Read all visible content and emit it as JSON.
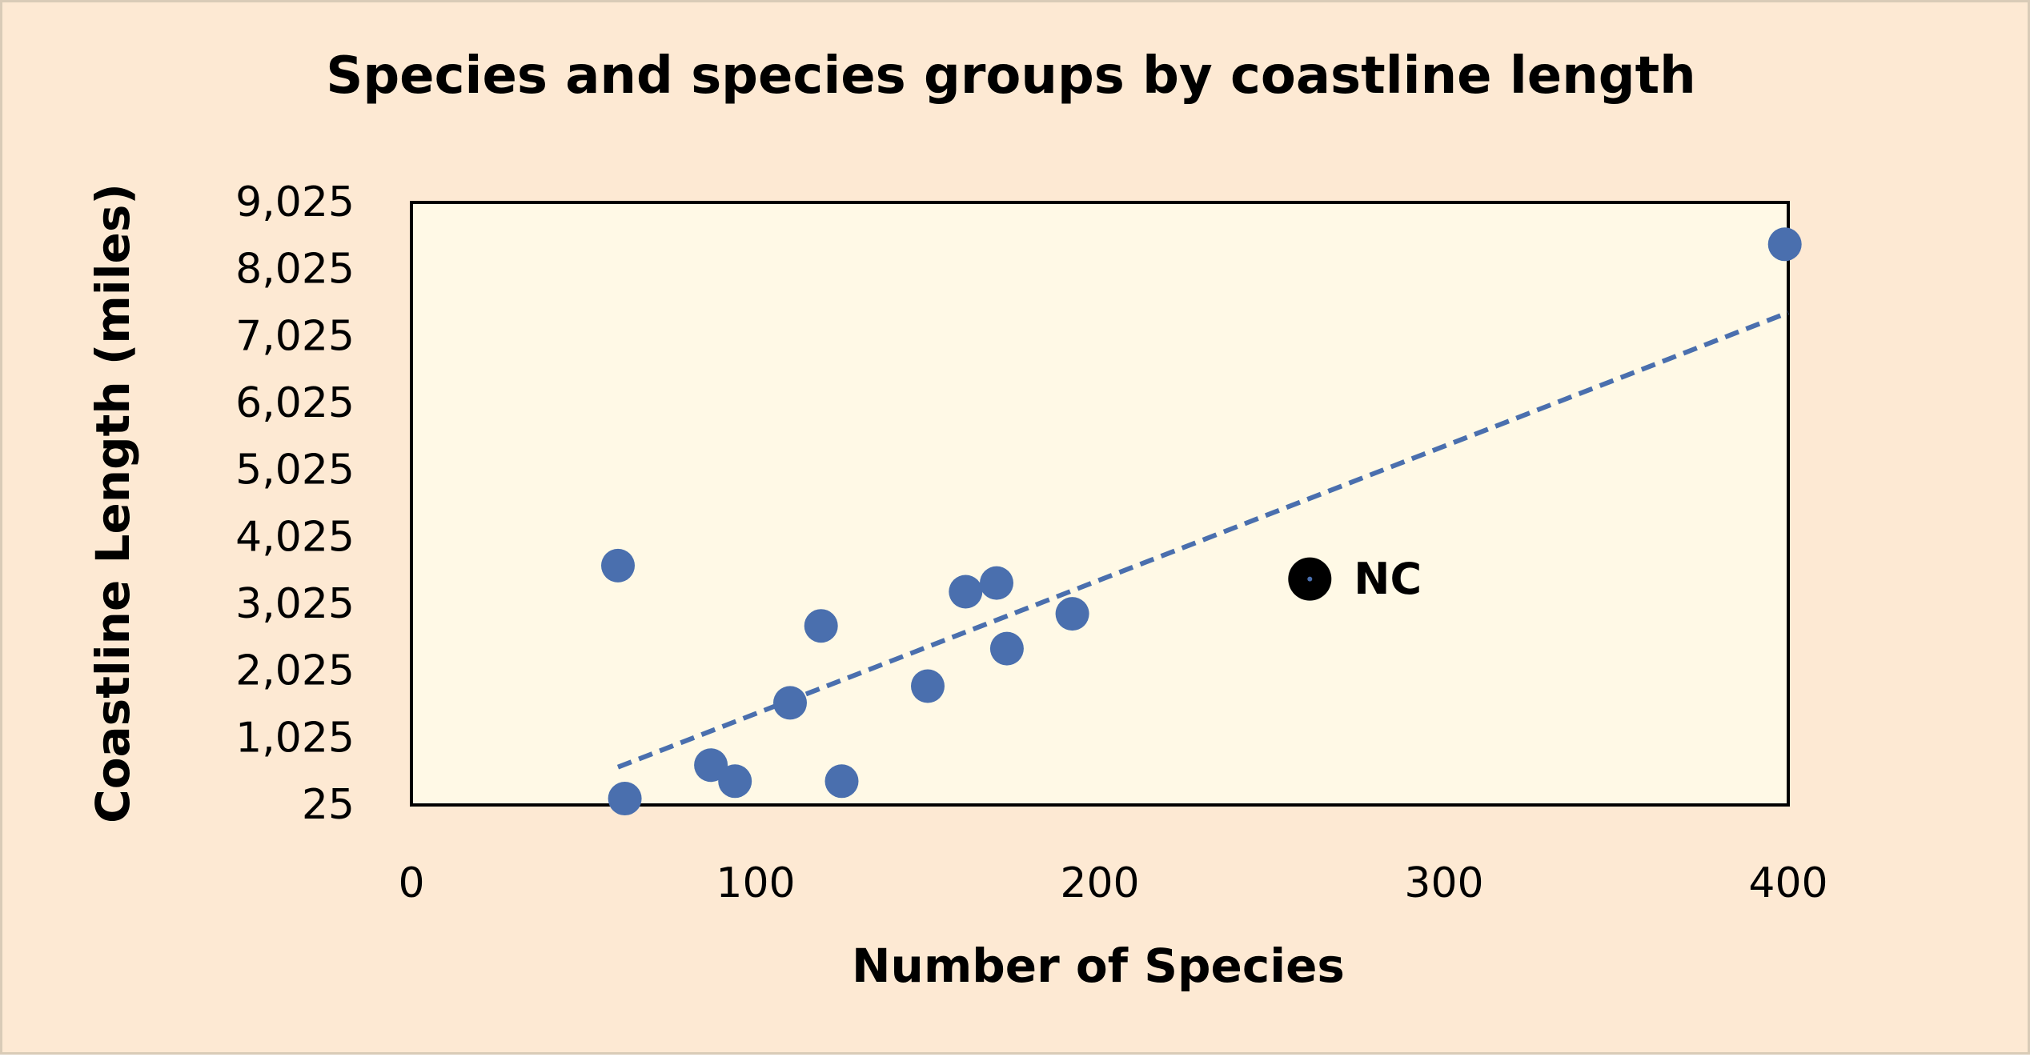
{
  "chart_data": {
    "type": "scatter",
    "title": "Species and species groups by coastline length",
    "xlabel": "Number of Species",
    "ylabel": "Coastline Length (miles)",
    "xlim": [
      0,
      400
    ],
    "ylim": [
      25,
      9025
    ],
    "x_ticks": [
      0,
      100,
      200,
      300,
      400
    ],
    "x_tick_labels": [
      "0",
      "100",
      "200",
      "300",
      "400"
    ],
    "y_ticks": [
      25,
      1025,
      2025,
      3025,
      4025,
      5025,
      6025,
      7025,
      8025,
      9025
    ],
    "y_tick_labels": [
      "25",
      "1,025",
      "2,025",
      "3,025",
      "4,025",
      "5,025",
      "6,025",
      "7,025",
      "8,025",
      "9,025"
    ],
    "grid": false,
    "legend": "none",
    "series": [
      {
        "color": "#4a6fae",
        "points": [
          {
            "x": 60,
            "y": 3600
          },
          {
            "x": 62,
            "y": 120
          },
          {
            "x": 87,
            "y": 620
          },
          {
            "x": 94,
            "y": 380
          },
          {
            "x": 110,
            "y": 1550
          },
          {
            "x": 119,
            "y": 2700
          },
          {
            "x": 125,
            "y": 380
          },
          {
            "x": 150,
            "y": 1800
          },
          {
            "x": 161,
            "y": 3210
          },
          {
            "x": 170,
            "y": 3340
          },
          {
            "x": 173,
            "y": 2360
          },
          {
            "x": 192,
            "y": 2880
          },
          {
            "x": 399,
            "y": 8400
          }
        ]
      }
    ],
    "highlight": {
      "label": "NC",
      "x": 261,
      "y": 3400,
      "color": "#000000"
    },
    "trendline": {
      "type": "linear",
      "style": "dashed",
      "color": "#4a6fae",
      "x_start": 60,
      "y_start": 590,
      "x_end": 400,
      "y_end": 7380
    }
  }
}
